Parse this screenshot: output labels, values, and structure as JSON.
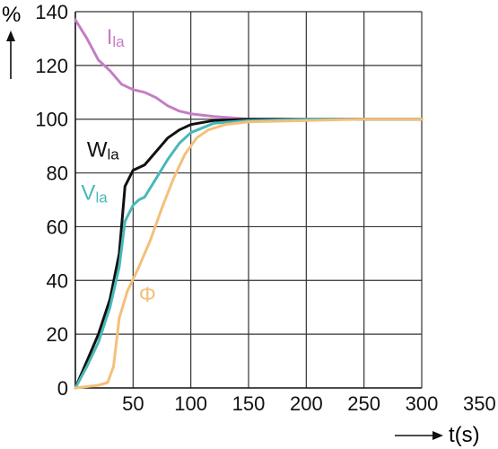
{
  "chart_data": {
    "type": "line",
    "ylabel": "%",
    "xlabel": "t(s)",
    "xlim": [
      0,
      350
    ],
    "ylim": [
      0,
      140
    ],
    "x_ticks": [
      50,
      100,
      150,
      200,
      250,
      300,
      350
    ],
    "y_ticks": [
      0,
      20,
      40,
      60,
      80,
      100,
      120,
      140
    ],
    "grid": true,
    "series": [
      {
        "name": "Ila",
        "label_main": "I",
        "label_sub": "la",
        "color": "#c47ec4",
        "points": [
          [
            0,
            137
          ],
          [
            10,
            130
          ],
          [
            20,
            122
          ],
          [
            30,
            118
          ],
          [
            40,
            113
          ],
          [
            50,
            111
          ],
          [
            60,
            110
          ],
          [
            70,
            108
          ],
          [
            80,
            105
          ],
          [
            90,
            103
          ],
          [
            100,
            102
          ],
          [
            120,
            101
          ],
          [
            150,
            100
          ],
          [
            200,
            100
          ],
          [
            250,
            100
          ],
          [
            300,
            100
          ]
        ]
      },
      {
        "name": "Wla",
        "label_main": "W",
        "label_sub": "la",
        "color": "#111111",
        "points": [
          [
            0,
            0
          ],
          [
            10,
            10
          ],
          [
            20,
            20
          ],
          [
            30,
            33
          ],
          [
            38,
            50
          ],
          [
            43,
            75
          ],
          [
            50,
            81
          ],
          [
            60,
            83
          ],
          [
            70,
            88
          ],
          [
            80,
            93
          ],
          [
            90,
            96
          ],
          [
            100,
            98
          ],
          [
            120,
            99.5
          ],
          [
            150,
            100
          ],
          [
            200,
            100
          ],
          [
            250,
            100
          ],
          [
            300,
            100
          ]
        ]
      },
      {
        "name": "Vla",
        "label_main": "V",
        "label_sub": "la",
        "color": "#4ab8b8",
        "points": [
          [
            0,
            0
          ],
          [
            10,
            8
          ],
          [
            20,
            17
          ],
          [
            30,
            30
          ],
          [
            38,
            45
          ],
          [
            43,
            62
          ],
          [
            50,
            68
          ],
          [
            55,
            70
          ],
          [
            60,
            71
          ],
          [
            70,
            78
          ],
          [
            80,
            85
          ],
          [
            90,
            91
          ],
          [
            100,
            95
          ],
          [
            120,
            98.5
          ],
          [
            150,
            99.5
          ],
          [
            200,
            100
          ],
          [
            250,
            100
          ],
          [
            300,
            100
          ]
        ]
      },
      {
        "name": "Φ",
        "label_main": "Φ",
        "label_sub": "",
        "color": "#f4c07a",
        "points": [
          [
            0,
            0
          ],
          [
            20,
            1
          ],
          [
            28,
            2
          ],
          [
            33,
            8
          ],
          [
            38,
            26
          ],
          [
            45,
            36
          ],
          [
            55,
            45
          ],
          [
            65,
            55
          ],
          [
            75,
            67
          ],
          [
            85,
            78
          ],
          [
            95,
            87
          ],
          [
            105,
            93
          ],
          [
            115,
            96
          ],
          [
            130,
            98
          ],
          [
            150,
            99
          ],
          [
            200,
            99.5
          ],
          [
            250,
            100
          ],
          [
            300,
            100
          ]
        ]
      }
    ],
    "series_label_positions": [
      {
        "series": 0,
        "x": 27,
        "y": 128
      },
      {
        "series": 1,
        "x": 10,
        "y": 86
      },
      {
        "series": 2,
        "x": 5,
        "y": 70
      },
      {
        "series": 3,
        "x": 55,
        "y": 32
      }
    ]
  }
}
